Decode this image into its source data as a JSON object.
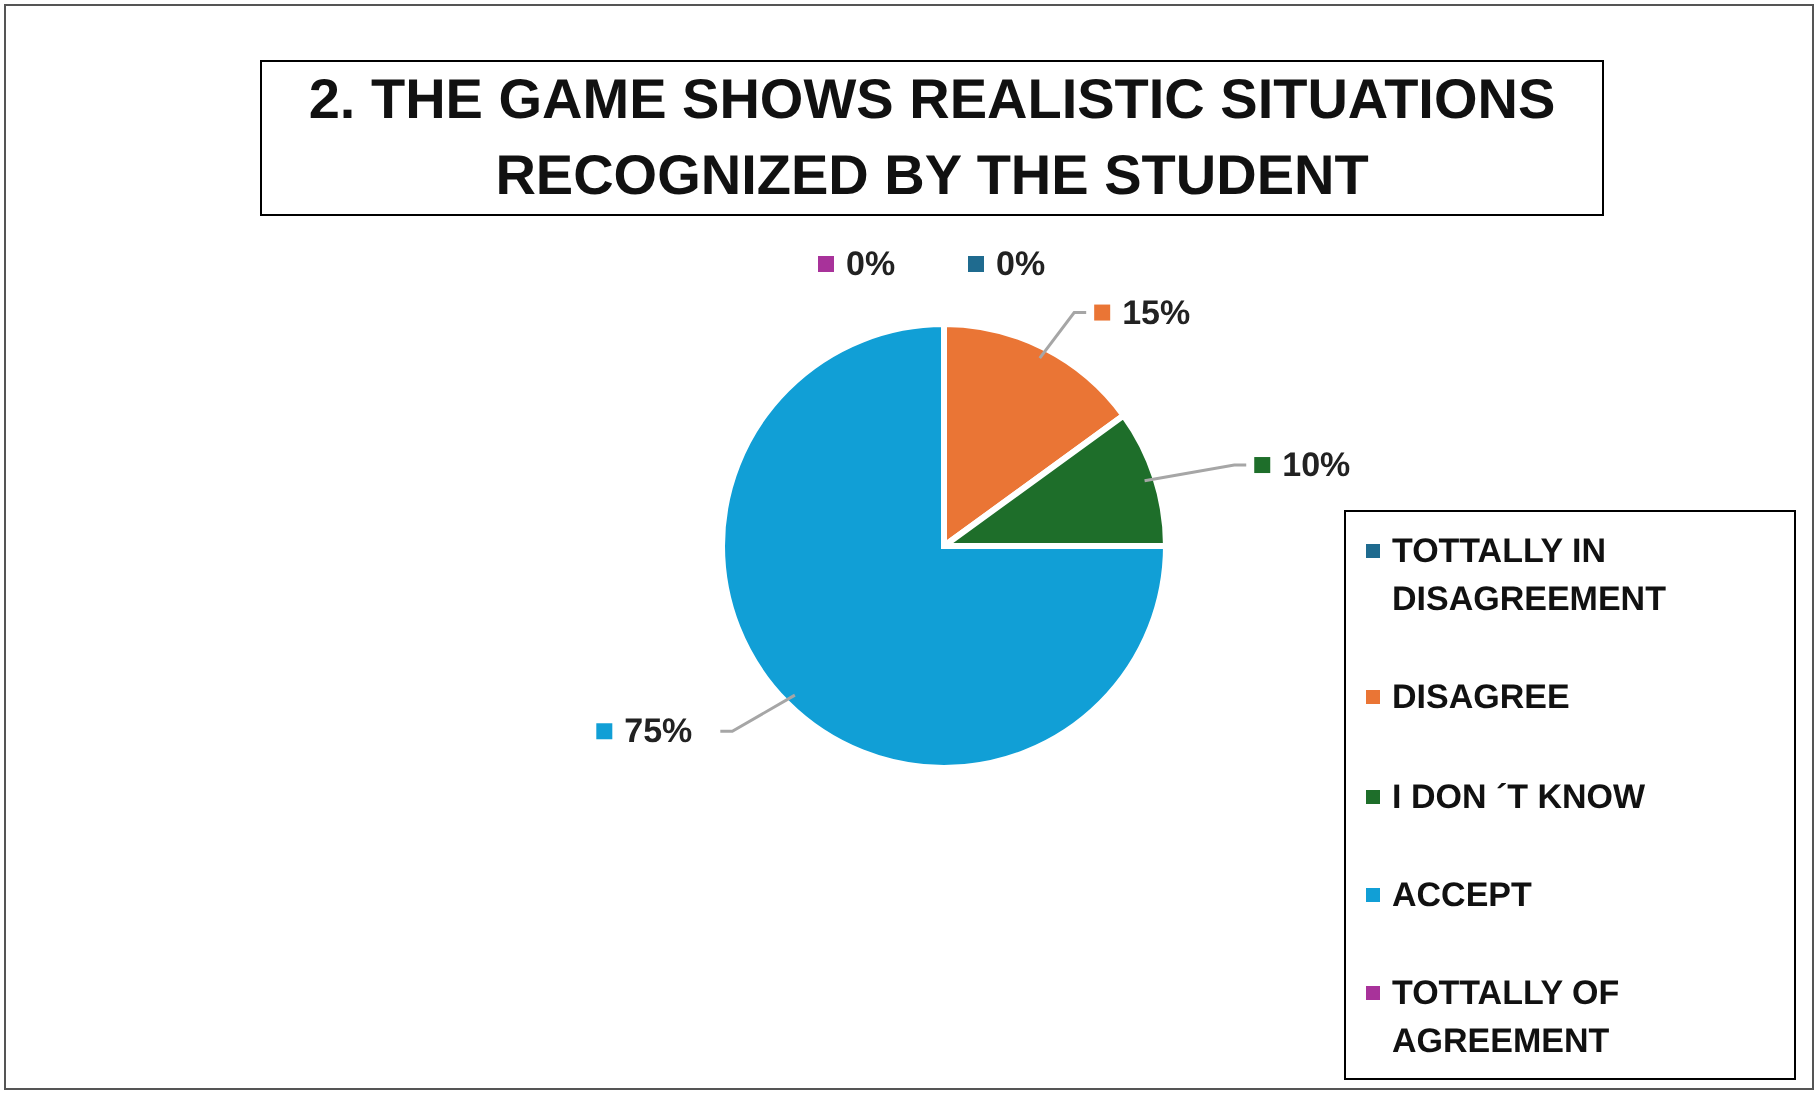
{
  "chart_data": {
    "type": "pie",
    "title": "2. THE GAME SHOWS REALISTIC SITUATIONS RECOGNIZED BY THE STUDENT",
    "categories": [
      "TOTTALLY IN DISAGREEMENT",
      "DISAGREE",
      "I DON ´T KNOW",
      "ACCEPT",
      "TOTTALLY OF AGREEMENT"
    ],
    "values": [
      0,
      15,
      10,
      75,
      0
    ],
    "colors": [
      "#1f6b8f",
      "#ea7535",
      "#1e6e2a",
      "#119fd6",
      "#a8329a"
    ],
    "value_labels": [
      "0%",
      "15%",
      "10%",
      "75%",
      "0%"
    ],
    "legend": "right"
  }
}
